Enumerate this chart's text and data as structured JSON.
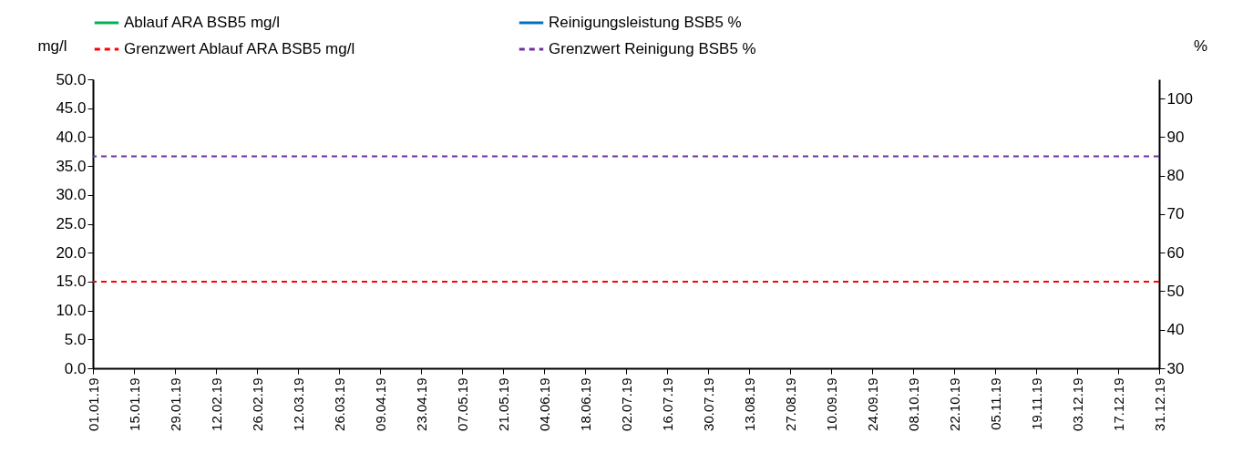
{
  "chart_data": {
    "type": "line",
    "ylabel": "mg/l",
    "y2label": "%",
    "categories": [
      "01.01.19",
      "15.01.19",
      "29.01.19",
      "12.02.19",
      "26.02.19",
      "12.03.19",
      "26.03.19",
      "09.04.19",
      "23.04.19",
      "07.05.19",
      "21.05.19",
      "04.06.19",
      "18.06.19",
      "02.07.19",
      "16.07.19",
      "30.07.19",
      "13.08.19",
      "27.08.19",
      "10.09.19",
      "24.09.19",
      "08.10.19",
      "22.10.19",
      "05.11.19",
      "19.11.19",
      "03.12.19",
      "17.12.19",
      "31.12.19"
    ],
    "ylim": [
      0,
      50
    ],
    "yticks": [
      {
        "value": 0,
        "label": "0.0"
      },
      {
        "value": 5,
        "label": "5.0"
      },
      {
        "value": 10,
        "label": "10.0"
      },
      {
        "value": 15,
        "label": "15.0"
      },
      {
        "value": 20,
        "label": "20.0"
      },
      {
        "value": 25,
        "label": "25.0"
      },
      {
        "value": 30,
        "label": "30.0"
      },
      {
        "value": 35,
        "label": "35.0"
      },
      {
        "value": 40,
        "label": "40.0"
      },
      {
        "value": 45,
        "label": "45.0"
      },
      {
        "value": 50,
        "label": "50.0"
      }
    ],
    "y2lim": [
      30,
      105
    ],
    "y2ticks": [
      30,
      40,
      50,
      60,
      70,
      80,
      90,
      100
    ],
    "series": [
      {
        "name": "Ablauf ARA BSB5 mg/l",
        "color": "#00b050",
        "values": [
          null,
          null,
          null,
          null,
          null,
          null,
          null,
          null,
          null,
          null,
          null,
          null,
          null,
          null,
          null,
          null,
          null,
          null,
          null,
          null,
          null,
          null,
          null,
          null,
          null,
          null,
          null
        ]
      },
      {
        "name": "Reinigungsleistung BSB5 %",
        "color": "#0070c0",
        "values": [
          null,
          null,
          null,
          null,
          null,
          null,
          null,
          null,
          null,
          null,
          null,
          null,
          null,
          null,
          null,
          null,
          null,
          null,
          null,
          null,
          null,
          null,
          null,
          null,
          null,
          null,
          null
        ]
      }
    ],
    "ref_lines": [
      {
        "axis": "y",
        "value": 15,
        "label": "Grenzwert Ablauf ARA BSB5 mg/l",
        "color": "#ff0000",
        "line_style": "dashed"
      },
      {
        "axis": "y2",
        "value": 85,
        "label": "Grenzwert Reinigung BSB5 %",
        "color": "#7030a0",
        "line_style": "dashed"
      }
    ],
    "grid": false,
    "legend": "top",
    "line_style": "solid"
  }
}
